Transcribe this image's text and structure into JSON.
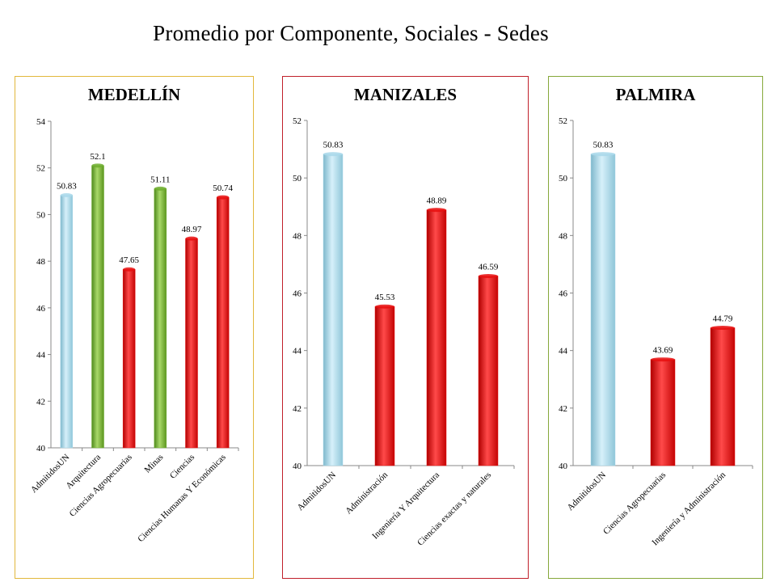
{
  "page": {
    "title": "Promedio por Componente, Sociales - Sedes"
  },
  "colors": {
    "admitidos": "#a9d8ea",
    "green": "#6fae2e",
    "red": "#e80f0f",
    "border_medellin": "#e2b83c",
    "border_manizales": "#c0202a",
    "border_palmira": "#86a83a"
  },
  "chart_data": [
    {
      "type": "bar",
      "title": "MEDELLÍN",
      "categories": [
        "AdmitidosUN",
        "Arquitectura",
        "Ciencias Agropecuarias",
        "Minas",
        "Ciencias",
        "Ciencias Humanas Y Económicas"
      ],
      "values": [
        50.83,
        52.1,
        47.65,
        51.11,
        48.97,
        50.74
      ],
      "value_labels": [
        "50.83",
        "52.1",
        "47.65",
        "51.11",
        "48.97",
        "50.74"
      ],
      "bar_colors": [
        "admitidos",
        "green",
        "red",
        "green",
        "red",
        "red"
      ],
      "ylim": [
        40,
        54
      ],
      "yticks": [
        40,
        42,
        44,
        46,
        48,
        50,
        52,
        54
      ],
      "grid": false,
      "legend": "none"
    },
    {
      "type": "bar",
      "title": "MANIZALES",
      "categories": [
        "AdmitidosUN",
        "Administración",
        "Ingeniería Y Arquitectura",
        "Ciencias exactas y naturales"
      ],
      "values": [
        50.83,
        45.53,
        48.89,
        46.59
      ],
      "value_labels": [
        "50.83",
        "45.53",
        "48.89",
        "46.59"
      ],
      "bar_colors": [
        "admitidos",
        "red",
        "red",
        "red"
      ],
      "ylim": [
        40,
        52
      ],
      "yticks": [
        40,
        42,
        44,
        46,
        48,
        50,
        52
      ],
      "grid": false,
      "legend": "none"
    },
    {
      "type": "bar",
      "title": "PALMIRA",
      "categories": [
        "AdmitidosUN",
        "Ciencias Agropecuarias",
        "Ingeniería y Administración"
      ],
      "values": [
        50.83,
        43.69,
        44.79
      ],
      "value_labels": [
        "50.83",
        "43.69",
        "44.79"
      ],
      "bar_colors": [
        "admitidos",
        "red",
        "red"
      ],
      "ylim": [
        40,
        52
      ],
      "yticks": [
        40,
        42,
        44,
        46,
        48,
        50,
        52
      ],
      "grid": false,
      "legend": "none"
    }
  ]
}
